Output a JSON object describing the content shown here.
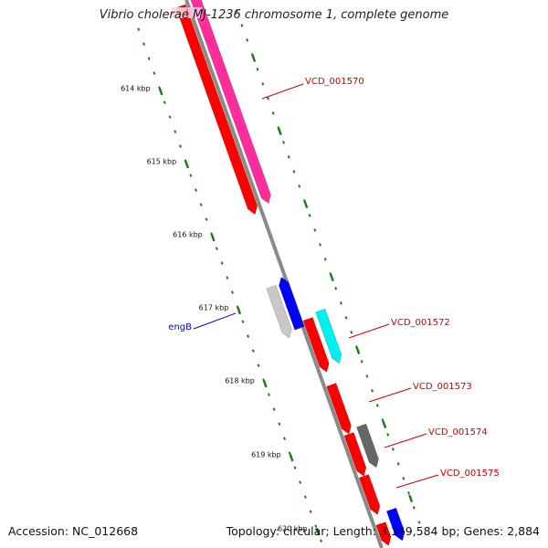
{
  "title": "Vibrio cholerae MJ-1236 chromosome 1, complete genome",
  "footer": {
    "accession": "Accession: NC_012668",
    "summary": "Topology: circular; Length: 3,149,584 bp; Genes: 2,884"
  },
  "ruler": [
    {
      "label": "614 kbp"
    },
    {
      "label": "615 kbp"
    },
    {
      "label": "616 kbp"
    },
    {
      "label": "617 kbp"
    },
    {
      "label": "618 kbp"
    },
    {
      "label": "619 kbp"
    },
    {
      "label": "620 kbp"
    }
  ],
  "colors": {
    "backbone": "#8a8a8a",
    "ruler": "#1e7a1e",
    "red_gene": "#ff0000",
    "pink_gene": "#ff2d9b",
    "cyan_gene": "#00f0f0",
    "blue_gene": "#0000ff",
    "gray_gene": "#666666",
    "light_gray_gene": "#c8c8c8",
    "red_label": "#cc0000",
    "blue_label": "#0000cc"
  },
  "genes": [
    {
      "color": "red_gene",
      "strand": "+"
    },
    {
      "color": "pink_gene",
      "strand": "+"
    },
    {
      "color": "light_gray_gene",
      "strand": "+"
    },
    {
      "color": "blue_gene",
      "strand": "-"
    },
    {
      "color": "red_gene",
      "strand": "+"
    },
    {
      "color": "cyan_gene",
      "strand": "+"
    },
    {
      "color": "red_gene",
      "strand": "+"
    },
    {
      "color": "red_gene",
      "strand": "+"
    },
    {
      "color": "gray_gene",
      "strand": "+"
    },
    {
      "color": "red_gene",
      "strand": "+"
    },
    {
      "color": "red_gene",
      "strand": "+"
    },
    {
      "color": "blue_gene",
      "strand": "+"
    }
  ],
  "labels": [
    {
      "text": "VCD_001570",
      "color": "red_label"
    },
    {
      "text": "engB",
      "color": "blue_label"
    },
    {
      "text": "VCD_001572",
      "color": "red_label"
    },
    {
      "text": "VCD_001573",
      "color": "red_label"
    },
    {
      "text": "VCD_001574",
      "color": "red_label"
    },
    {
      "text": "VCD_001575",
      "color": "red_label"
    }
  ]
}
